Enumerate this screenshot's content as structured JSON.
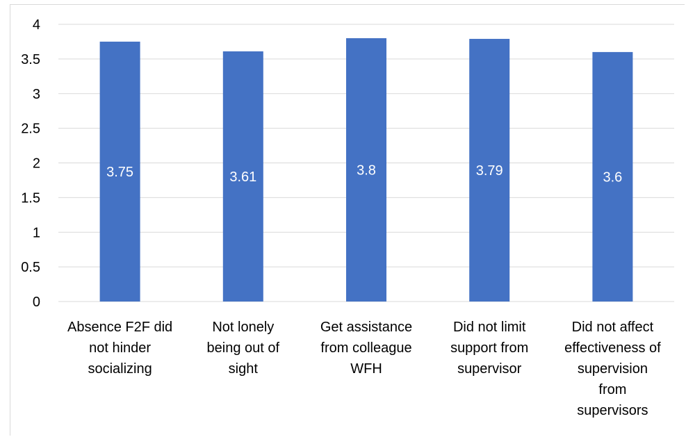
{
  "chart_data": {
    "type": "bar",
    "title": "",
    "xlabel": "",
    "ylabel": "",
    "ylim": [
      0,
      4
    ],
    "ytick_step": 0.5,
    "yticks": [
      "0",
      "0.5",
      "1",
      "1.5",
      "2",
      "2.5",
      "3",
      "3.5",
      "4"
    ],
    "grid": true,
    "legend": "none",
    "bar_color": "#4472C4",
    "categories": [
      "Absence F2F did not hinder socializing",
      "Not lonely being out of sight",
      "Get assistance from colleague WFH",
      "Did not limit support from supervisor",
      "Did not affect effectiveness of supervision from supervisors"
    ],
    "values": [
      3.75,
      3.61,
      3.8,
      3.79,
      3.6
    ],
    "data_labels": [
      "3.75",
      "3.61",
      "3.8",
      "3.79",
      "3.6"
    ]
  }
}
